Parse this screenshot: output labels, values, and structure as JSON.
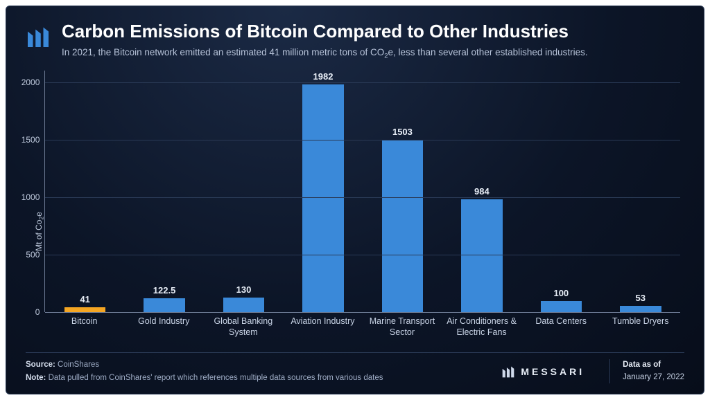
{
  "header": {
    "title": "Carbon Emissions of Bitcoin Compared to Other Industries",
    "subtitle_pre": "In 2021, the Bitcoin network emitted an estimated 41 million metric tons of CO",
    "subtitle_sub": "2",
    "subtitle_post": "e, less than several other established industries."
  },
  "chart": {
    "type": "bar",
    "y_axis_label_pre": "Mt of Co",
    "y_axis_label_sub": "2",
    "y_axis_label_post": "e",
    "ylim": [
      0,
      2100
    ],
    "yticks": [
      0,
      500,
      1000,
      1500,
      2000
    ],
    "grid_color": "#2a3a56",
    "axis_color": "#6e7c96",
    "background": "transparent",
    "label_color": "#c2cde0",
    "value_color": "#e8eef7",
    "value_fontsize": 13,
    "label_fontsize": 12.5,
    "bar_width_pct": 52,
    "categories": [
      "Bitcoin",
      "Gold Industry",
      "Global Banking System",
      "Aviation Industry",
      "Marine Transport Sector",
      "Air Conditioners & Electric Fans",
      "Data Centers",
      "Tumble Dryers"
    ],
    "values": [
      41,
      122.5,
      130,
      1982,
      1503,
      984,
      100,
      53
    ],
    "bar_colors": [
      "#f5a623",
      "#3a89d9",
      "#3a89d9",
      "#3a89d9",
      "#3a89d9",
      "#3a89d9",
      "#3a89d9",
      "#3a89d9"
    ]
  },
  "footer": {
    "source_label": "Source:",
    "source_value": "CoinShares",
    "note_label": "Note:",
    "note_value": "Data pulled from CoinShares' report which references multiple data sources from various dates",
    "brand": "MESSARI",
    "date_label": "Data as of",
    "date_value": "January 27, 2022"
  },
  "colors": {
    "card_bg_inner": "#1b2a45",
    "card_bg_outer": "#070d1a",
    "text_primary": "#ffffff",
    "text_secondary": "#b7c3d9",
    "border": "#2a3a56"
  }
}
